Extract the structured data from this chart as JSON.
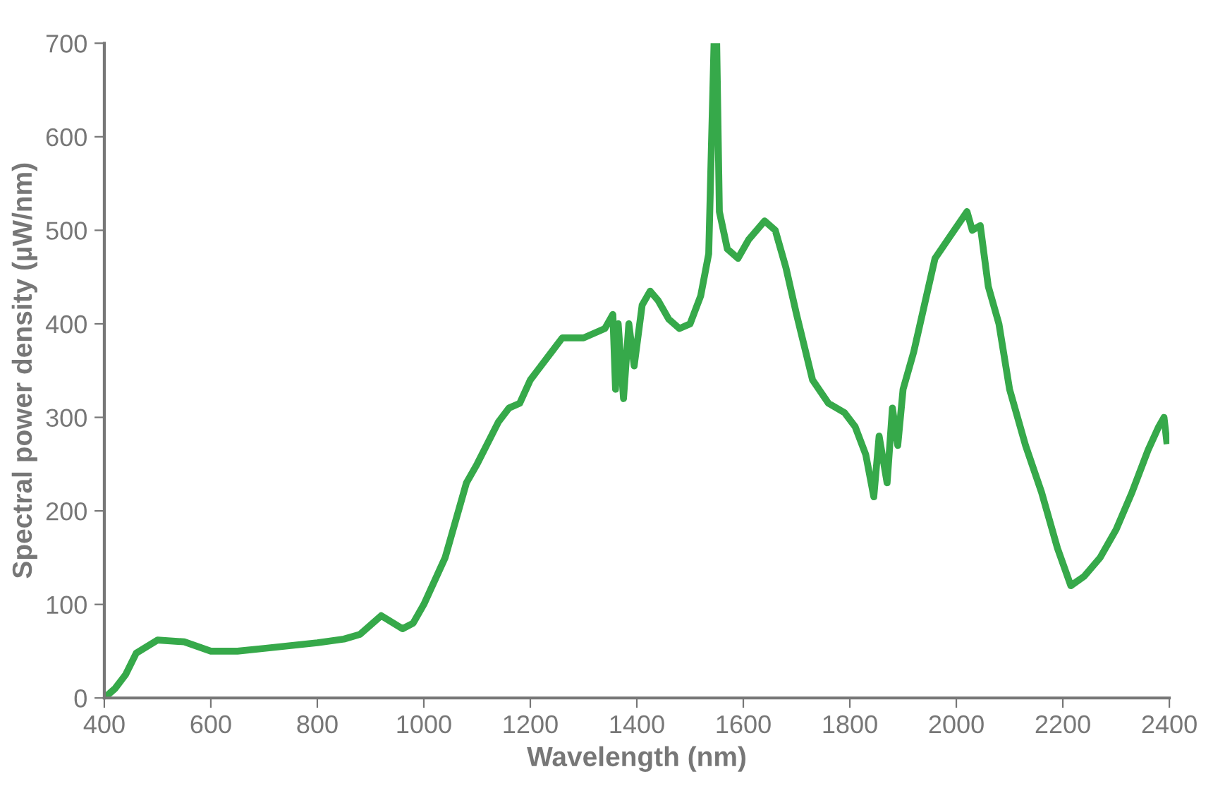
{
  "chart_data": {
    "type": "line",
    "xlabel": "Wavelength (nm)",
    "ylabel": "Spectral power density (µW/nm)",
    "xlim": [
      400,
      2400
    ],
    "ylim": [
      0,
      700
    ],
    "xticks": [
      400,
      600,
      800,
      1000,
      1200,
      1400,
      1600,
      1800,
      2000,
      2200,
      2400
    ],
    "yticks": [
      0,
      100,
      200,
      300,
      400,
      500,
      600,
      700
    ],
    "grid": false,
    "legend": false,
    "marker": "none",
    "line_style": "solid",
    "series": [
      {
        "color": "#36a94a",
        "x": [
          400,
          420,
          440,
          460,
          480,
          500,
          550,
          600,
          650,
          700,
          750,
          800,
          850,
          880,
          920,
          960,
          980,
          1000,
          1040,
          1060,
          1080,
          1100,
          1140,
          1160,
          1180,
          1200,
          1240,
          1260,
          1300,
          1340,
          1355,
          1360,
          1365,
          1375,
          1385,
          1395,
          1410,
          1425,
          1440,
          1460,
          1480,
          1500,
          1520,
          1535,
          1545,
          1550,
          1555,
          1570,
          1590,
          1610,
          1640,
          1660,
          1680,
          1700,
          1730,
          1760,
          1790,
          1810,
          1830,
          1845,
          1855,
          1870,
          1880,
          1890,
          1900,
          1920,
          1940,
          1960,
          1990,
          2020,
          2030,
          2045,
          2060,
          2080,
          2100,
          2130,
          2160,
          2190,
          2215,
          2240,
          2270,
          2300,
          2330,
          2360,
          2380,
          2390,
          2395
        ],
        "values": [
          0,
          10,
          25,
          48,
          55,
          62,
          60,
          50,
          50,
          53,
          56,
          59,
          63,
          68,
          88,
          74,
          80,
          100,
          150,
          190,
          230,
          250,
          295,
          310,
          315,
          340,
          370,
          385,
          385,
          395,
          410,
          330,
          400,
          320,
          400,
          355,
          420,
          435,
          425,
          405,
          395,
          400,
          430,
          475,
          700,
          700,
          520,
          480,
          470,
          490,
          510,
          500,
          460,
          410,
          340,
          315,
          305,
          290,
          260,
          215,
          280,
          230,
          310,
          270,
          330,
          370,
          420,
          470,
          495,
          520,
          500,
          505,
          440,
          400,
          330,
          270,
          220,
          160,
          120,
          130,
          150,
          180,
          220,
          265,
          290,
          300,
          275
        ]
      }
    ]
  }
}
